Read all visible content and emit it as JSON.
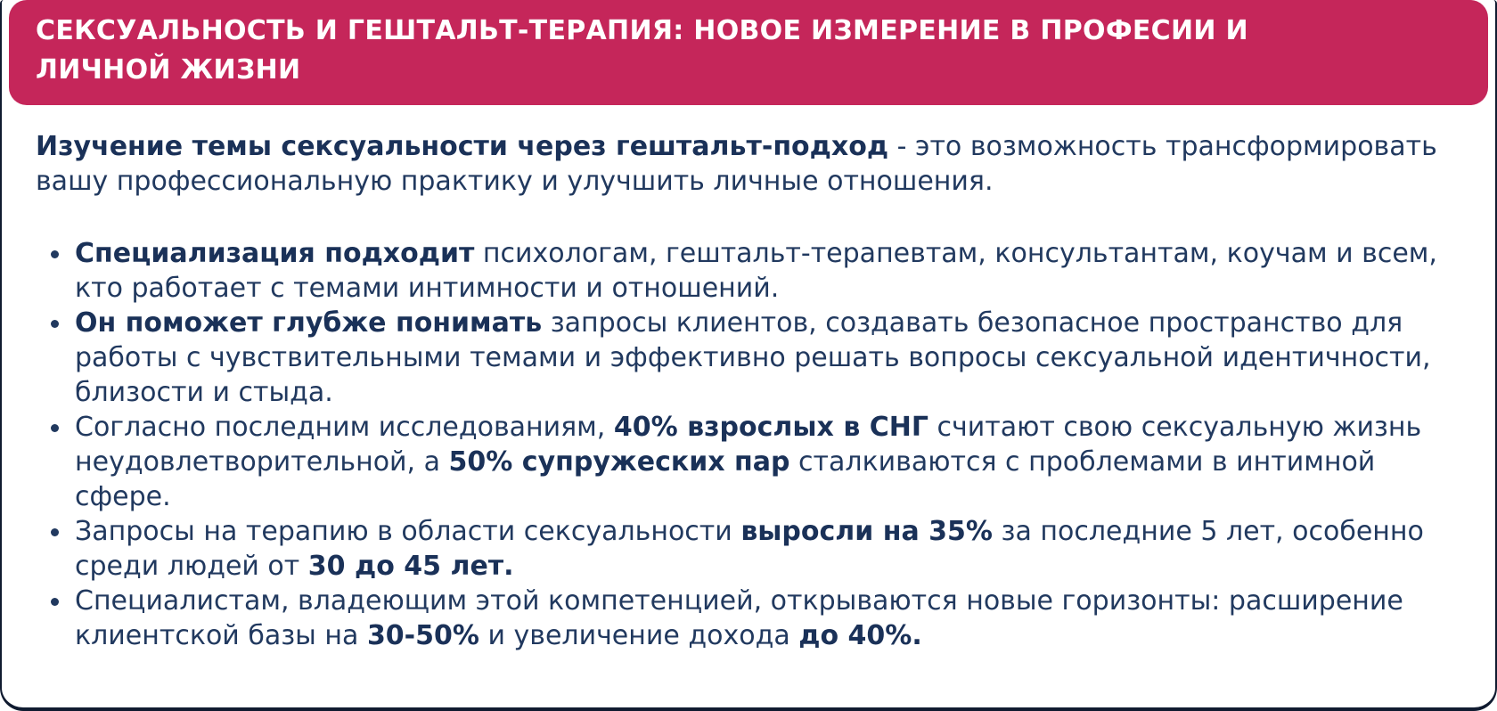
{
  "colors": {
    "accent": "#c5265a",
    "text": "#21395f",
    "text_bold": "#1a3158",
    "border": "#101b30",
    "background": "#ffffff",
    "header_text": "#ffffff"
  },
  "header": {
    "title": "СЕКСУАЛЬНОСТЬ И ГЕШТАЛЬТ-ТЕРАПИЯ: НОВОЕ ИЗМЕРЕНИЕ В ПРОФЕСИИ И ЛИЧНОЙ ЖИЗНИ"
  },
  "intro": {
    "lead_bold": "Изучение темы сексуальности через гештальт-подход",
    "rest": " - это возможность трансформировать вашу профессиональную практику и улучшить личные отношения."
  },
  "bullets": [
    {
      "segments": [
        {
          "text": "Специализация подходит",
          "bold": true
        },
        {
          "text": " психологам, гештальт-терапевтам, консультантам, коучам и всем, кто работает с темами интимности и отношений.",
          "bold": false
        }
      ]
    },
    {
      "segments": [
        {
          "text": "Он поможет глубже понимать",
          "bold": true
        },
        {
          "text": " запросы клиентов, создавать безопасное пространство для работы с чувствительными темами и эффективно решать вопросы сексуальной идентичности, близости и стыда.",
          "bold": false
        }
      ]
    },
    {
      "segments": [
        {
          "text": "Согласно последним исследованиям, ",
          "bold": false
        },
        {
          "text": "40% взрослых в СНГ",
          "bold": true
        },
        {
          "text": " считают свою сексуальную жизнь неудовлетворительной, а ",
          "bold": false
        },
        {
          "text": "50% супружеских пар",
          "bold": true
        },
        {
          "text": " сталкиваются с проблемами в интимной сфере.",
          "bold": false
        }
      ]
    },
    {
      "segments": [
        {
          "text": "Запросы на терапию в области сексуальности ",
          "bold": false
        },
        {
          "text": "выросли на 35%",
          "bold": true
        },
        {
          "text": " за последние 5 лет, особенно среди людей от ",
          "bold": false
        },
        {
          "text": "30 до 45 лет.",
          "bold": true
        }
      ]
    },
    {
      "segments": [
        {
          "text": "Специалистам, владеющим этой компетенцией, открываются новые горизонты: расширение клиентской базы на ",
          "bold": false
        },
        {
          "text": "30-50%",
          "bold": true
        },
        {
          "text": " и увеличение дохода ",
          "bold": false
        },
        {
          "text": "до 40%.",
          "bold": true
        }
      ]
    }
  ]
}
